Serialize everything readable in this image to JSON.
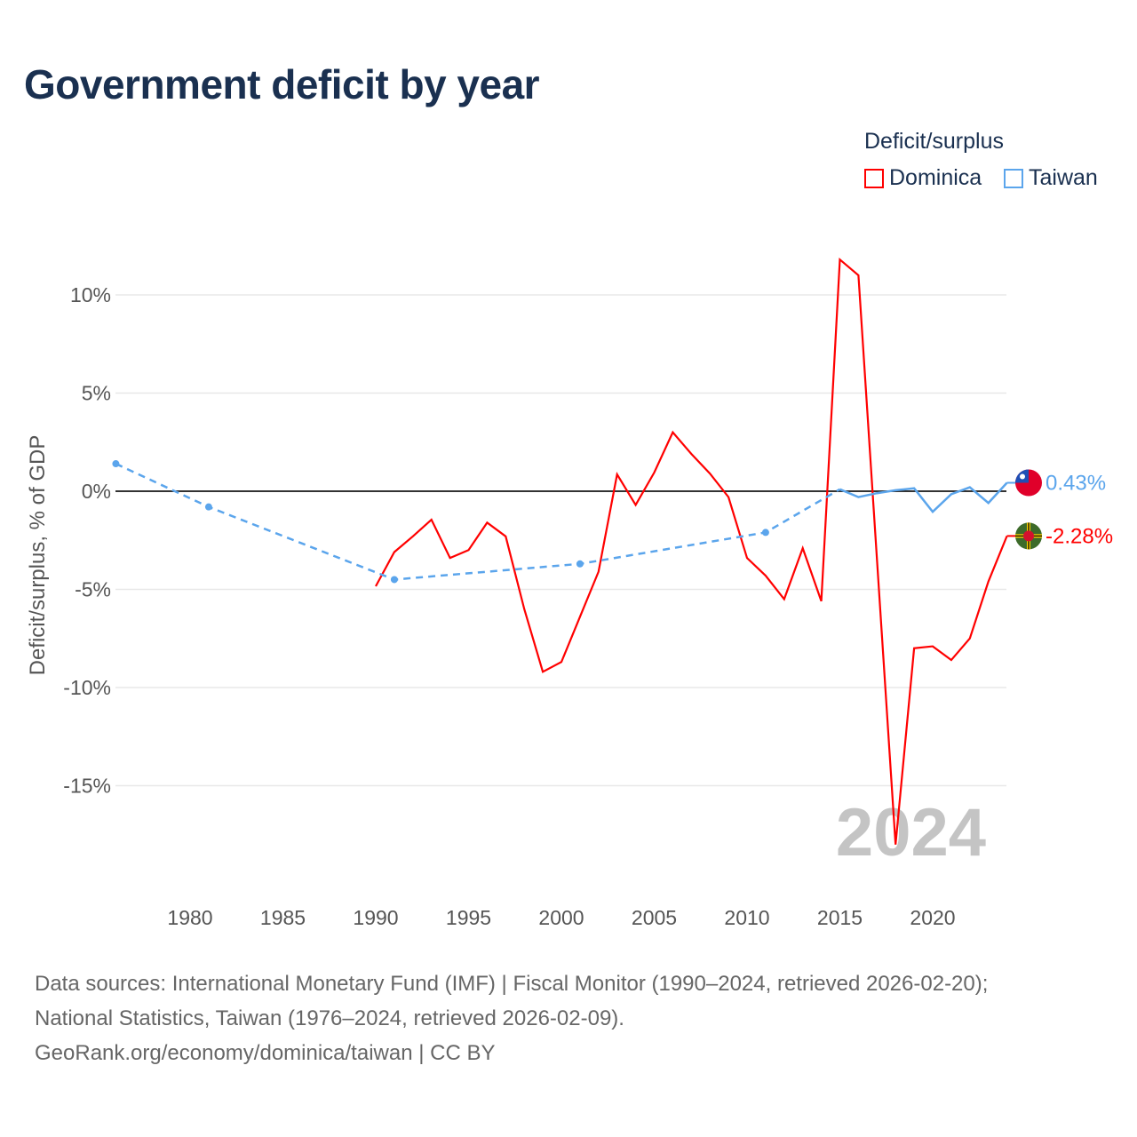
{
  "title": "Government deficit by year",
  "legend": {
    "title": "Deficit/surplus",
    "items": [
      {
        "name": "Dominica",
        "color": "#ff0000"
      },
      {
        "name": "Taiwan",
        "color": "#5ba5ec"
      }
    ]
  },
  "source": {
    "line1": "Data sources: International Monetary Fund (IMF) | Fiscal Monitor (1990–2024, retrieved 2026-02-20);",
    "line2": "National Statistics, Taiwan (1976–2024, retrieved 2026-02-09).",
    "line3": "GeoRank.org/economy/dominica/taiwan | CC BY"
  },
  "chart_data": {
    "type": "line",
    "title": "Government deficit by year",
    "xlabel": "",
    "ylabel": "Deficit/surplus, % of GDP",
    "xlim": [
      1976,
      2024
    ],
    "ylim": [
      -19,
      12
    ],
    "xticks": [
      1980,
      1985,
      1990,
      1995,
      2000,
      2005,
      2010,
      2015,
      2020
    ],
    "yticks": [
      10,
      5,
      0,
      -5,
      -10,
      -15
    ],
    "ytick_labels": [
      "10%",
      "5%",
      "0%",
      "-5%",
      "-10%",
      "-15%"
    ],
    "year_watermark": "2024",
    "series": [
      {
        "name": "Dominica",
        "color": "#ff0000",
        "end_label": "-2.28%",
        "x": [
          1990,
          1991,
          1992,
          1993,
          1994,
          1995,
          1996,
          1997,
          1998,
          1999,
          2000,
          2001,
          2002,
          2003,
          2004,
          2005,
          2006,
          2007,
          2008,
          2009,
          2010,
          2011,
          2012,
          2013,
          2014,
          2015,
          2016,
          2018,
          2019,
          2020,
          2021,
          2022,
          2023,
          2024
        ],
        "y": [
          -4.84,
          -3.1,
          -2.3,
          -1.45,
          -3.4,
          -3.0,
          -1.6,
          -2.3,
          -6.0,
          -9.2,
          -8.7,
          -6.4,
          -4.1,
          0.86,
          -0.7,
          0.95,
          3.0,
          1.9,
          0.9,
          -0.3,
          -3.4,
          -4.3,
          -5.5,
          -2.9,
          -5.6,
          11.8,
          11.0,
          -18.0,
          -8.0,
          -7.9,
          -8.6,
          -7.5,
          -4.6,
          -2.28
        ]
      },
      {
        "name": "Taiwan",
        "color": "#5ba5ec",
        "end_label": "0.43%",
        "x": [
          1976,
          1981,
          1991,
          2001,
          2011,
          2015,
          2016,
          2017,
          2018,
          2019,
          2020,
          2021,
          2022,
          2023,
          2024
        ],
        "y": [
          1.4,
          -0.8,
          -4.5,
          -3.7,
          -2.1,
          0.1,
          -0.3,
          -0.1,
          0.05,
          0.15,
          -1.05,
          -0.15,
          0.2,
          -0.6,
          0.43
        ],
        "sparse_until": 2011
      }
    ]
  }
}
